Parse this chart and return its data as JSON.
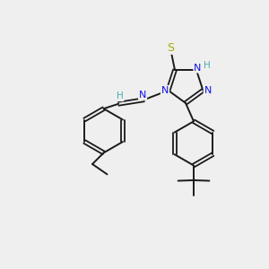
{
  "background_color": "#efefef",
  "bond_color": "#1a1a1a",
  "N_color": "#1010ee",
  "S_color": "#aaaa00",
  "H_label_color": "#4aacac",
  "figsize": [
    3.0,
    3.0
  ],
  "dpi": 100,
  "xlim": [
    0,
    10
  ],
  "ylim": [
    0,
    10
  ]
}
